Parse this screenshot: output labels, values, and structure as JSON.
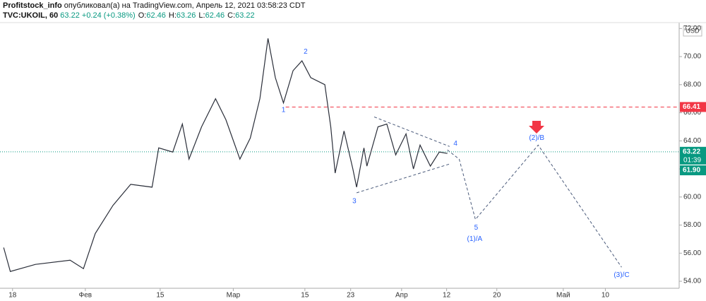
{
  "header": {
    "author": "Profitstock_info",
    "published": "опубликовал(а) на TradingView.com, Апрель 12, 2021 03:58:23 CDT",
    "symbol": "TVC:UKOIL, 60",
    "last": "63.22",
    "change": "+0.24 (+0.38%)",
    "ohlc": [
      {
        "key": "O:",
        "value": "62.46"
      },
      {
        "key": "H:",
        "value": "63.26"
      },
      {
        "key": "L:",
        "value": "62.46"
      },
      {
        "key": "C:",
        "value": "63.22"
      }
    ]
  },
  "chart_data": {
    "type": "line",
    "currency": "USD",
    "series": [
      {
        "name": "UKOIL",
        "color": "#2a2e39",
        "x": [
          -1.2,
          -0.3,
          3.1,
          7.8,
          9.6,
          11.2,
          13.6,
          16.0,
          18.9,
          19.8,
          21.7,
          23.0,
          23.9,
          25.6,
          27.5,
          28.9,
          30.8,
          32.2,
          33.5,
          34.6,
          35.6,
          36.7,
          38.0,
          39.2,
          40.4,
          42.3,
          43.1,
          43.7,
          44.9,
          46.1,
          46.6,
          47.6,
          48.0,
          49.5,
          50.7,
          51.9,
          53.3,
          54.3,
          55.2,
          56.6,
          57.8,
          58.9
        ],
        "values": [
          56.4,
          54.7,
          55.2,
          55.5,
          54.9,
          57.4,
          59.4,
          60.9,
          60.7,
          63.5,
          63.2,
          65.2,
          62.7,
          65.0,
          67.0,
          65.5,
          62.7,
          64.2,
          67.0,
          71.3,
          68.5,
          66.7,
          69.0,
          69.7,
          68.5,
          68.0,
          65.0,
          61.7,
          64.7,
          62.0,
          60.7,
          63.5,
          62.2,
          65.0,
          65.2,
          63.0,
          64.5,
          62.0,
          63.7,
          62.2,
          63.2,
          63.1
        ]
      }
    ],
    "forecast": {
      "color": "#4a5a7a",
      "x": [
        58.9,
        60.5,
        62.7,
        71.2,
        82.5
      ],
      "values": [
        63.35,
        62.7,
        58.4,
        63.7,
        55.0
      ]
    },
    "triangle": {
      "color": "#4a5a7a",
      "upper": {
        "x": [
          49.0,
          59.2
        ],
        "values": [
          65.7,
          63.6
        ]
      },
      "lower": {
        "x": [
          46.6,
          59.2
        ],
        "values": [
          60.3,
          62.35
        ]
      }
    },
    "waves": [
      {
        "text": "1",
        "x": 36.7,
        "y": 66.2
      },
      {
        "text": "2",
        "x": 39.7,
        "y": 70.35
      },
      {
        "text": "3",
        "x": 46.3,
        "y": 59.7
      },
      {
        "text": "4",
        "x": 60.0,
        "y": 63.8
      },
      {
        "text": "5",
        "x": 62.8,
        "y": 57.8
      },
      {
        "text": "(1)/A",
        "x": 62.6,
        "y": 57.0
      },
      {
        "text": "(2)/B",
        "x": 71.0,
        "y": 64.2
      },
      {
        "text": "(3)/C",
        "x": 82.5,
        "y": 54.45
      }
    ],
    "resistance": {
      "value": 66.41,
      "from": 37.0,
      "color": "#f23645"
    },
    "last_price": {
      "value": 63.22,
      "countdown": "01:39",
      "color": "#089981"
    },
    "price_labels": [
      {
        "value": 66.41,
        "label": "66.41",
        "color": "#f23645"
      },
      {
        "value": 63.22,
        "label": "63.22",
        "color": "#089981"
      },
      {
        "value": 61.9,
        "label": "61.90",
        "color": "#089981"
      }
    ],
    "xlim": [
      -1.7,
      90.3
    ],
    "xticks": [
      {
        "value": 0,
        "label": "18"
      },
      {
        "value": 9.86,
        "label": "Фев"
      },
      {
        "value": 20,
        "label": "15"
      },
      {
        "value": 29.9,
        "label": "Мар"
      },
      {
        "value": 39.6,
        "label": "15"
      },
      {
        "value": 45.8,
        "label": "23"
      },
      {
        "value": 52.7,
        "label": "Апр"
      },
      {
        "value": 58.8,
        "label": "12"
      },
      {
        "value": 65.6,
        "label": "20"
      },
      {
        "value": 74.6,
        "label": "Май"
      },
      {
        "value": 80.3,
        "label": "10"
      }
    ],
    "ylim": [
      53.5,
      72.42
    ],
    "yticks": [
      {
        "value": 54,
        "label": "54.00"
      },
      {
        "value": 56,
        "label": "56.00"
      },
      {
        "value": 58,
        "label": "58.00"
      },
      {
        "value": 60,
        "label": "60.00"
      },
      {
        "value": 62,
        "label": "62.00"
      },
      {
        "value": 64,
        "label": "64.00"
      },
      {
        "value": 66,
        "label": "66.00"
      },
      {
        "value": 68,
        "label": "68.00"
      },
      {
        "value": 70,
        "label": "70.00"
      },
      {
        "value": 72,
        "label": "72.00"
      }
    ],
    "grid": false
  }
}
